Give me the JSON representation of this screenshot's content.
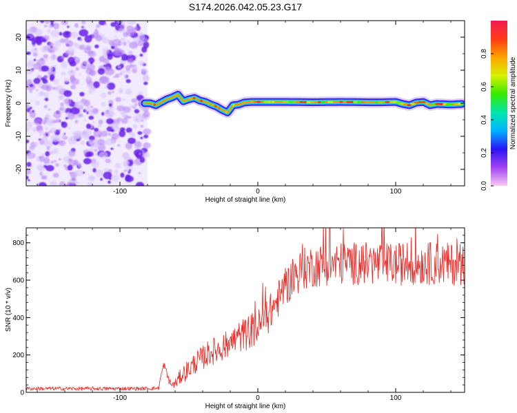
{
  "title": "S174.2026.042.05.23.G17",
  "colors": {
    "snr_line": "#e8312d",
    "axis": "#000000",
    "background": "#ffffff",
    "noise_dark": "#6a1ee8",
    "noise_light": "#d9c6fb"
  },
  "chart_data": [
    {
      "type": "heatmap",
      "title": "S174.2026.042.05.23.G17",
      "xlabel": "Height of straight line (km)",
      "ylabel": "Frequency (Hz)",
      "xlim": [
        -168,
        150
      ],
      "ylim": [
        -25,
        25
      ],
      "xticks": [
        -100,
        0,
        100
      ],
      "yticks": [
        -20,
        -10,
        0,
        10,
        20
      ],
      "noise_region_x": [
        -168,
        -80
      ],
      "ridge": {
        "x": [
          -82,
          -78,
          -74,
          -70,
          -66,
          -62,
          -58,
          -54,
          -50,
          -46,
          -42,
          -38,
          -34,
          -30,
          -26,
          -22,
          -18,
          -14,
          -10,
          -5,
          0,
          20,
          40,
          60,
          80,
          90,
          100,
          105,
          110,
          115,
          120,
          125,
          130,
          140,
          148
        ],
        "y": [
          0,
          0,
          -0.6,
          0.3,
          1.2,
          1.8,
          2.6,
          0.6,
          1.2,
          1.6,
          0.8,
          0.4,
          -0.4,
          -1.0,
          -2.0,
          -2.8,
          -0.6,
          -0.4,
          0.2,
          0.4,
          0.4,
          0.4,
          0.3,
          0.4,
          0.3,
          0.3,
          0.4,
          -0.2,
          -0.6,
          0.2,
          0.4,
          -0.6,
          -0.2,
          -0.4,
          -0.2
        ]
      },
      "colorbar": {
        "label": "Normalized spectral amplitude",
        "range": [
          0,
          1
        ],
        "ticks": [
          "0.0",
          "0.2",
          "0.4",
          "0.6",
          "0.8"
        ],
        "tick_values": [
          0,
          0.2,
          0.4,
          0.6,
          0.8
        ],
        "stops": [
          "#f9c9f5",
          "#a243f1",
          "#2a14f5",
          "#00b3ff",
          "#00e6ad",
          "#36ea00",
          "#d7ef00",
          "#ffa500",
          "#ff3b16",
          "#f01c50"
        ]
      }
    },
    {
      "type": "line",
      "xlabel": "Height of straight line (km)",
      "ylabel": "SNR (10 * v/v)",
      "xlim": [
        -168,
        150
      ],
      "ylim": [
        0,
        880
      ],
      "xticks": [
        -100,
        0,
        100
      ],
      "yticks": [
        0,
        200,
        400,
        600,
        800
      ],
      "series": [
        {
          "name": "SNR",
          "x": [
            -168,
            -140,
            -110,
            -85,
            -72,
            -70,
            -68,
            -66,
            -63,
            -60,
            -55,
            -50,
            -45,
            -40,
            -35,
            -30,
            -25,
            -20,
            -15,
            -10,
            -5,
            0,
            5,
            10,
            15,
            20,
            25,
            30,
            35,
            40,
            50,
            60,
            70,
            80,
            90,
            100,
            110,
            120,
            130,
            140,
            150
          ],
          "y": [
            20,
            20,
            20,
            20,
            22,
            95,
            150,
            95,
            40,
            45,
            95,
            125,
            160,
            185,
            215,
            225,
            245,
            260,
            290,
            310,
            330,
            345,
            385,
            440,
            500,
            560,
            610,
            645,
            665,
            675,
            685,
            690,
            690,
            690,
            685,
            685,
            690,
            690,
            690,
            685,
            690
          ],
          "noise_amplitude": [
            10,
            10,
            10,
            10,
            10,
            20,
            25,
            25,
            20,
            25,
            45,
            55,
            60,
            65,
            70,
            75,
            75,
            80,
            85,
            90,
            95,
            100,
            100,
            100,
            100,
            100,
            110,
            110,
            115,
            115,
            115,
            115,
            115,
            115,
            115,
            115,
            115,
            115,
            115,
            115,
            115
          ]
        }
      ]
    }
  ]
}
